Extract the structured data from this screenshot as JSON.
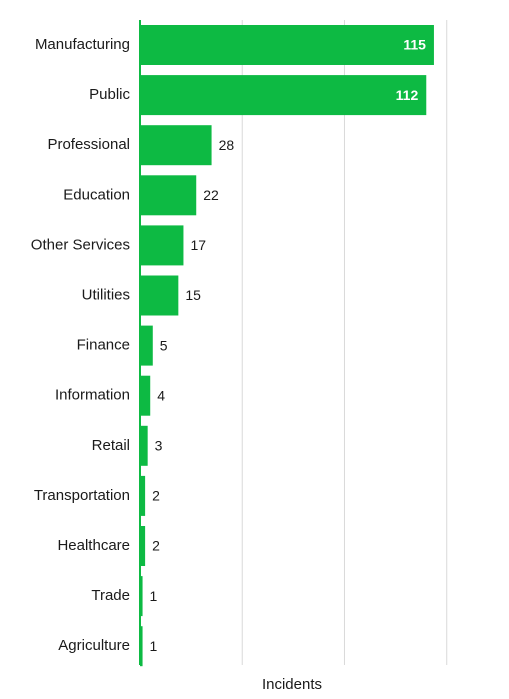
{
  "chart_data": {
    "type": "bar",
    "orientation": "horizontal",
    "categories": [
      "Manufacturing",
      "Public",
      "Professional",
      "Education",
      "Other Services",
      "Utilities",
      "Finance",
      "Information",
      "Retail",
      "Transportation",
      "Healthcare",
      "Trade",
      "Agriculture"
    ],
    "values": [
      115,
      112,
      28,
      22,
      17,
      15,
      5,
      4,
      3,
      2,
      2,
      1,
      1
    ],
    "xlabel": "Incidents",
    "xlim": [
      0,
      120
    ],
    "grid": true,
    "bar_color": "#0dba43",
    "axis_color": "#0dba43"
  }
}
